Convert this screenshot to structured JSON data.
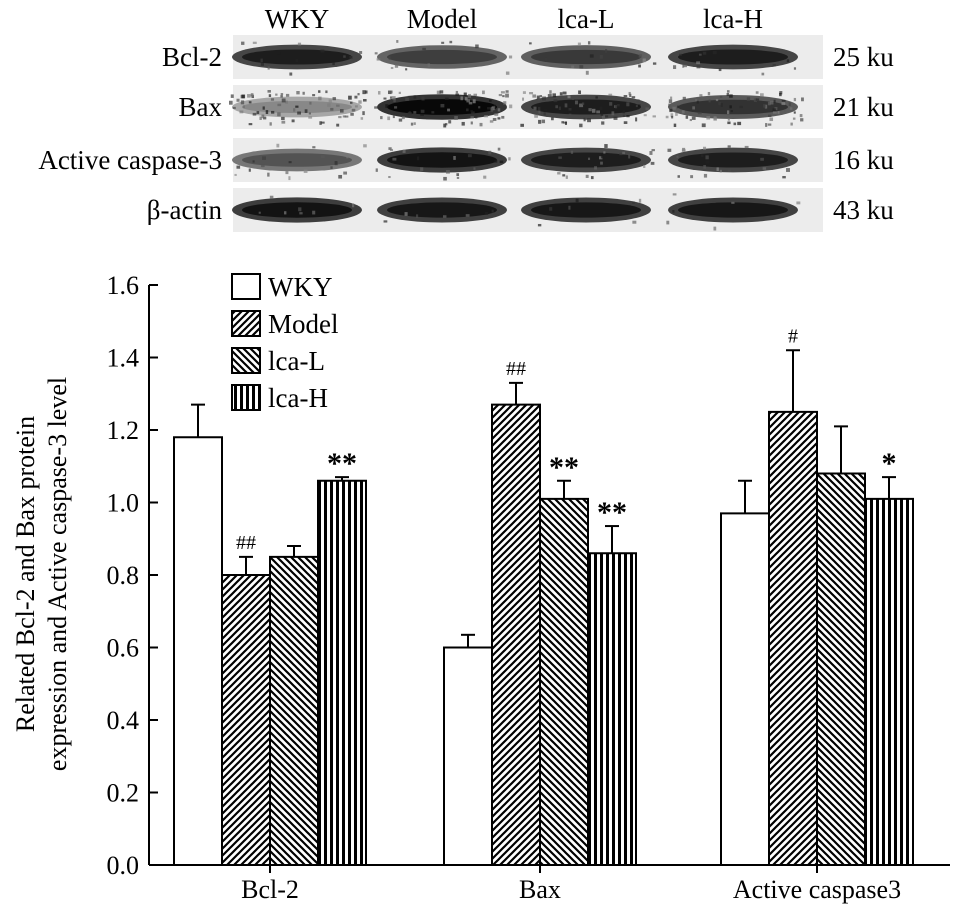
{
  "blot": {
    "lanes": [
      "WKY",
      "Model",
      "lca-L",
      "lca-H"
    ],
    "rows": [
      {
        "label": "Bcl-2",
        "mw": "25 ku",
        "intensity": [
          0.85,
          0.7,
          0.72,
          0.85
        ],
        "noise": 0.1
      },
      {
        "label": "Bax",
        "mw": "21 ku",
        "intensity": [
          0.35,
          0.95,
          0.85,
          0.75
        ],
        "noise": 0.55
      },
      {
        "label": "Active caspase-3",
        "mw": "16 ku",
        "intensity": [
          0.6,
          0.9,
          0.85,
          0.85
        ],
        "noise": 0.15
      },
      {
        "label": "β-actin",
        "mw": "43 ku",
        "intensity": [
          0.9,
          0.88,
          0.88,
          0.88
        ],
        "noise": 0.05
      }
    ]
  },
  "chart_data": {
    "type": "bar",
    "categories": [
      "Bcl-2",
      "Bax",
      "Active caspase3"
    ],
    "ylabel_line1": "Related Bcl-2 and Bax protein",
    "ylabel_line2": "expression and Active caspase-3 level",
    "ylim": [
      0,
      1.6
    ],
    "yticks": [
      "0.0",
      "0.2",
      "0.4",
      "0.6",
      "0.8",
      "1.0",
      "1.2",
      "1.4",
      "1.6"
    ],
    "legend_position": "top-left",
    "series": [
      {
        "name": "WKY",
        "pattern": "none",
        "values": [
          1.18,
          0.6,
          0.97
        ],
        "errors": [
          0.09,
          0.035,
          0.09
        ],
        "annotations": [
          "",
          "",
          ""
        ]
      },
      {
        "name": "Model",
        "pattern": "diagonal-right",
        "values": [
          0.8,
          1.27,
          1.25
        ],
        "errors": [
          0.05,
          0.06,
          0.17
        ],
        "annotations": [
          "##",
          "##",
          "#"
        ]
      },
      {
        "name": "lca-L",
        "pattern": "diagonal-left",
        "values": [
          0.85,
          1.01,
          1.08
        ],
        "errors": [
          0.03,
          0.05,
          0.13
        ],
        "annotations": [
          "",
          "**",
          ""
        ]
      },
      {
        "name": "lca-H",
        "pattern": "vertical",
        "values": [
          1.06,
          0.86,
          1.01
        ],
        "errors": [
          0.01,
          0.075,
          0.06
        ],
        "annotations": [
          "**",
          "**",
          "*"
        ]
      }
    ]
  }
}
